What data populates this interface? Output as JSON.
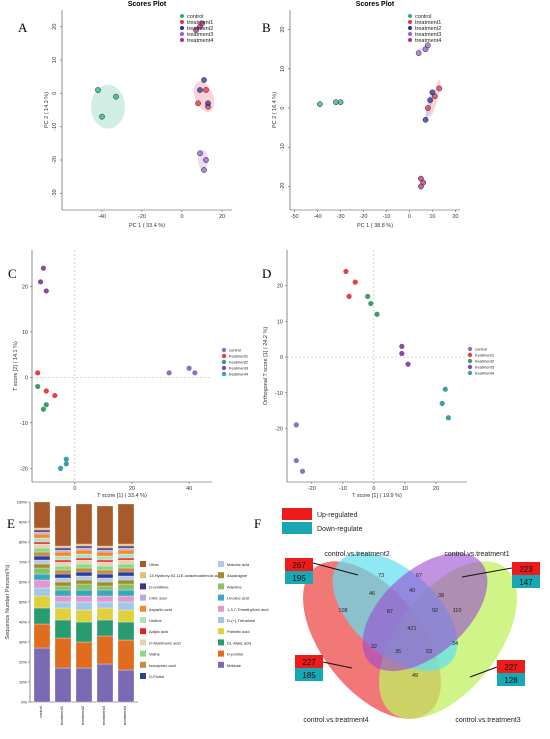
{
  "panels": {
    "A": {
      "label": "A",
      "title": "Scores Plot",
      "xlabel": "PC 1 ( 33.4 %)",
      "ylabel": "PC 2 ( 14.2 %)",
      "xticks": [
        "-40",
        "-20",
        "0",
        "20"
      ],
      "yticks": [
        "20",
        "10",
        "0",
        "-10",
        "-20",
        "-30"
      ]
    },
    "B": {
      "label": "B",
      "title": "Scores Plot",
      "xlabel": "PC 1 ( 38.8 %)",
      "ylabel": "PC 2 ( 16.4 %)",
      "xticks": [
        "-50",
        "-40",
        "-30",
        "-20",
        "-10",
        "0",
        "10",
        "20"
      ],
      "yticks": [
        "20",
        "10",
        "0",
        "-10",
        "-20"
      ]
    },
    "C": {
      "label": "C",
      "xlabel": "T score [1] ( 33.4 %)",
      "ylabel": "T score [2] ( 14.1 %)",
      "xticks": [
        "0",
        "20",
        "40"
      ],
      "yticks": [
        "20",
        "10",
        "0",
        "-10",
        "-20"
      ]
    },
    "D": {
      "label": "D",
      "xlabel": "T score [1] ( 19.9 %)",
      "ylabel": "Orthogonal T score [1] ( 24.2 %)",
      "xticks": [
        "-20",
        "-10",
        "0",
        "10",
        "20"
      ],
      "yticks": [
        "20",
        "10",
        "0",
        "-10",
        "-20"
      ]
    },
    "E": {
      "label": "E",
      "ylabel": "Sequence Number Percent(%)",
      "yticks": [
        "100%",
        "90%",
        "80%",
        "70%",
        "60%",
        "50%",
        "40%",
        "30%",
        "20%",
        "10%",
        "0%"
      ]
    },
    "F": {
      "label": "F"
    }
  },
  "groups": [
    "control",
    "treatment1",
    "treatment2",
    "treatment3",
    "treatment4"
  ],
  "colors": {
    "ab": {
      "control": "#2ab07f",
      "treatment1": "#e8304a",
      "treatment2": "#2c2ca8",
      "treatment3": "#9a60d0",
      "treatment4": "#c02a80"
    },
    "cd": {
      "control": "#7a7ac0",
      "treatment1": "#e84040",
      "treatment2": "#38a060",
      "treatment3": "#8a4aa8",
      "treatment4": "#3aa0a8"
    }
  },
  "chart_data": [
    {
      "panel": "A",
      "type": "scatter",
      "series": [
        {
          "name": "control",
          "points": [
            [
              -42,
              1
            ],
            [
              -33,
              -1
            ],
            [
              -40,
              -7
            ]
          ]
        },
        {
          "name": "treatment1",
          "points": [
            [
              8,
              -3
            ],
            [
              12,
              1
            ],
            [
              13,
              -4
            ]
          ]
        },
        {
          "name": "treatment2",
          "points": [
            [
              11,
              4
            ],
            [
              13,
              -3
            ],
            [
              9,
              1
            ]
          ]
        },
        {
          "name": "treatment3",
          "points": [
            [
              9,
              -18
            ],
            [
              11,
              -23
            ],
            [
              12,
              -20
            ]
          ]
        },
        {
          "name": "treatment4",
          "points": [
            [
              7,
              19
            ],
            [
              9,
              20
            ],
            [
              10,
              21
            ]
          ]
        }
      ],
      "xlim": [
        -60,
        25
      ],
      "ylim": [
        -35,
        25
      ]
    },
    {
      "panel": "B",
      "type": "scatter",
      "series": [
        {
          "name": "control",
          "points": [
            [
              -39,
              1
            ],
            [
              -32,
              1.5
            ],
            [
              -30,
              1.5
            ]
          ]
        },
        {
          "name": "treatment1",
          "points": [
            [
              11,
              3
            ],
            [
              13,
              5
            ],
            [
              8,
              0
            ]
          ]
        },
        {
          "name": "treatment2",
          "points": [
            [
              9,
              2
            ],
            [
              10,
              4
            ],
            [
              7,
              -3
            ]
          ]
        },
        {
          "name": "treatment3",
          "points": [
            [
              4,
              14
            ],
            [
              7,
              15
            ],
            [
              8,
              16
            ]
          ]
        },
        {
          "name": "treatment4",
          "points": [
            [
              5,
              -18
            ],
            [
              6,
              -19
            ],
            [
              5,
              -20
            ]
          ]
        }
      ],
      "xlim": [
        -52,
        22
      ],
      "ylim": [
        -26,
        25
      ]
    },
    {
      "panel": "C",
      "type": "scatter",
      "series": [
        {
          "name": "control",
          "points": [
            [
              33,
              1
            ],
            [
              40,
              2
            ],
            [
              42,
              1
            ]
          ]
        },
        {
          "name": "treatment1",
          "points": [
            [
              -13,
              1
            ],
            [
              -10,
              -3
            ],
            [
              -7,
              -4
            ]
          ]
        },
        {
          "name": "treatment2",
          "points": [
            [
              -13,
              -2
            ],
            [
              -11,
              -7
            ],
            [
              -10,
              -6
            ]
          ]
        },
        {
          "name": "treatment3",
          "points": [
            [
              -11,
              24
            ],
            [
              -12,
              21
            ],
            [
              -10,
              19
            ]
          ]
        },
        {
          "name": "treatment4",
          "points": [
            [
              -5,
              -20
            ],
            [
              -3,
              -19
            ],
            [
              -3,
              -18
            ]
          ]
        }
      ],
      "xlim": [
        -15,
        48
      ],
      "ylim": [
        -23,
        28
      ]
    },
    {
      "panel": "D",
      "type": "scatter",
      "series": [
        {
          "name": "control",
          "points": [
            [
              -25,
              -19
            ],
            [
              -25,
              -29
            ],
            [
              -23,
              -32
            ]
          ]
        },
        {
          "name": "treatment1",
          "points": [
            [
              -9,
              24
            ],
            [
              -8,
              17
            ],
            [
              -6,
              21
            ]
          ]
        },
        {
          "name": "treatment2",
          "points": [
            [
              -2,
              17
            ],
            [
              -1,
              15
            ],
            [
              1,
              12
            ]
          ]
        },
        {
          "name": "treatment3",
          "points": [
            [
              9,
              3
            ],
            [
              9,
              1
            ],
            [
              11,
              -2
            ]
          ]
        },
        {
          "name": "treatment4",
          "points": [
            [
              22,
              -13
            ],
            [
              23,
              -9
            ],
            [
              24,
              -17
            ]
          ]
        }
      ],
      "xlim": [
        -28,
        30
      ],
      "ylim": [
        -35,
        30
      ]
    },
    {
      "panel": "E",
      "type": "bar",
      "stacked": true,
      "categories": [
        "control",
        "treatment1",
        "treatment2",
        "treatment3",
        "treatment4"
      ],
      "legend_col1": [
        "Other",
        "13-Hydroxy-9Z,11E-octadecadienoic acid",
        "D-ornithine",
        "Citric acid",
        "Aspartic acid",
        "Uridine",
        "Adipic acid",
        "D-Arabinonic acid",
        "Valine",
        "Isocaproic acid",
        "D-Pinitol"
      ],
      "legend_col2": [
        "Malonic acid",
        "Asparagine",
        "Adenine",
        "Linoleic acid",
        "1,3,7-Trimethyluric acid",
        "D-(+)-Trehalose",
        "Palmitic acid",
        "DL-Malic acid",
        "D-proline",
        "Maltose"
      ],
      "series": [
        {
          "name": "Maltose",
          "values": [
            27,
            17,
            17,
            19,
            16
          ]
        },
        {
          "name": "D-proline",
          "values": [
            12,
            15,
            13,
            14,
            15
          ]
        },
        {
          "name": "DL-Malic acid",
          "values": [
            8,
            9,
            10,
            8,
            9
          ]
        },
        {
          "name": "Palmitic acid",
          "values": [
            6,
            6,
            6,
            6,
            6
          ]
        },
        {
          "name": "D-(+)-Trehalose",
          "values": [
            4,
            3,
            4,
            3,
            4
          ]
        },
        {
          "name": "1,3,7-Trimethyluric acid",
          "values": [
            4,
            3,
            3,
            3,
            3
          ]
        },
        {
          "name": "Linoleic acid",
          "values": [
            3,
            3,
            3,
            3,
            3
          ]
        },
        {
          "name": "Adenine",
          "values": [
            3,
            2,
            3,
            2,
            3
          ]
        },
        {
          "name": "Asparagine",
          "values": [
            2,
            2,
            2,
            2,
            2
          ]
        },
        {
          "name": "Malonic acid",
          "values": [
            2,
            2,
            2,
            2,
            2
          ]
        },
        {
          "name": "D-Pinitol",
          "values": [
            2,
            2,
            2,
            2,
            2
          ]
        },
        {
          "name": "Isocaproic acid",
          "values": [
            2,
            2,
            2,
            2,
            2
          ]
        },
        {
          "name": "Valine",
          "values": [
            2,
            2,
            2,
            2,
            2
          ]
        },
        {
          "name": "D-Arabinonic acid",
          "values": [
            2,
            2,
            2,
            2,
            2
          ]
        },
        {
          "name": "Adipic acid",
          "values": [
            1,
            1,
            1,
            1,
            1
          ]
        },
        {
          "name": "Uridine",
          "values": [
            2,
            2,
            2,
            2,
            2
          ]
        },
        {
          "name": "Aspartic acid",
          "values": [
            2,
            2,
            2,
            2,
            2
          ]
        },
        {
          "name": "Citric acid",
          "values": [
            1,
            1,
            1,
            1,
            1
          ]
        },
        {
          "name": "D-ornithine",
          "values": [
            1,
            1,
            1,
            1,
            1
          ]
        },
        {
          "name": "13-Hydroxy-9Z,11E-octadecadienoic acid",
          "values": [
            1,
            1,
            1,
            1,
            1
          ]
        },
        {
          "name": "Other",
          "values": [
            13,
            20,
            20,
            20,
            20
          ]
        }
      ],
      "ylim": [
        0,
        100
      ]
    },
    {
      "panel": "F",
      "type": "venn",
      "legend": {
        "up": "Up-regulated",
        "down": "Down-regulate"
      },
      "sets": [
        {
          "name": "control.vs.treatment2",
          "up": "267",
          "down": "195"
        },
        {
          "name": "control.vs.treatment1",
          "up": "223",
          "down": "147"
        },
        {
          "name": "control.vs.treatment4",
          "up": "227",
          "down": "185"
        },
        {
          "name": "control.vs.treatment3",
          "up": "227",
          "down": "128"
        }
      ],
      "regions": [
        "108",
        "73",
        "67",
        "110",
        "46",
        "40",
        "38",
        "87",
        "92",
        "421",
        "32",
        "34",
        "35",
        "53",
        "49"
      ]
    }
  ],
  "venn_colors": {
    "s4": "#f06060",
    "s2": "#60e0f0",
    "s1": "#9a4ad0",
    "s3": "#c0f060",
    "up": "#ee1b1b",
    "down": "#1aa7b4"
  }
}
